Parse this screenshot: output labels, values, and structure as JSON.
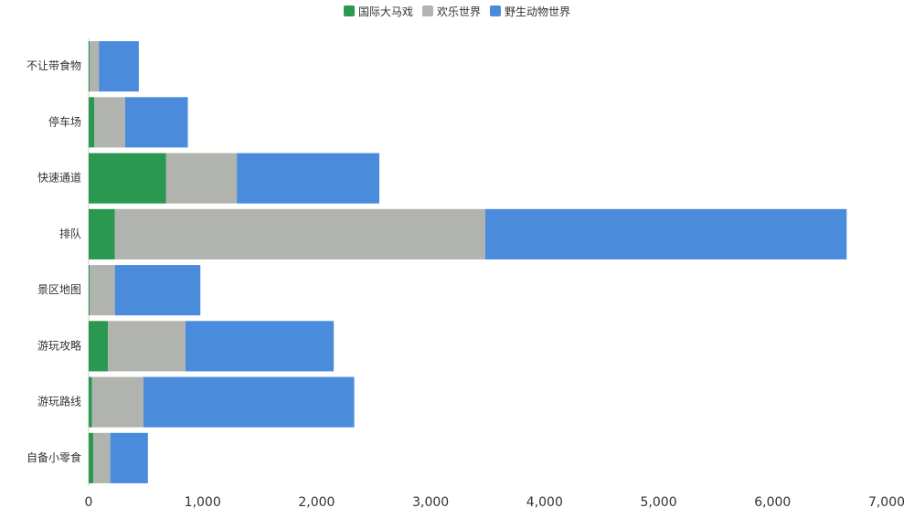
{
  "chart_data": {
    "type": "bar",
    "orientation": "horizontal",
    "stacked": true,
    "categories": [
      "不让带食物",
      "停车场",
      "快速通道",
      "排队",
      "景区地图",
      "游玩攻略",
      "游玩路线",
      "自备小零食"
    ],
    "series": [
      {
        "name": "国际大马戏",
        "color": "#2a9850",
        "values": [
          10,
          50,
          680,
          230,
          10,
          170,
          30,
          40
        ]
      },
      {
        "name": "欢乐世界",
        "color": "#b1b3ae",
        "values": [
          80,
          270,
          620,
          3250,
          220,
          680,
          450,
          150
        ]
      },
      {
        "name": "野生动物世界",
        "color": "#4a8bdb",
        "values": [
          350,
          550,
          1250,
          3170,
          750,
          1300,
          1850,
          330
        ]
      }
    ],
    "xlim": [
      0,
      7000
    ],
    "xticks": [
      0,
      1000,
      2000,
      3000,
      4000,
      5000,
      6000,
      7000
    ],
    "xtick_labels": [
      "0",
      "1,000",
      "2,000",
      "3,000",
      "4,000",
      "5,000",
      "6,000",
      "7,000"
    ],
    "legend_position": "top-center",
    "grid": false
  }
}
